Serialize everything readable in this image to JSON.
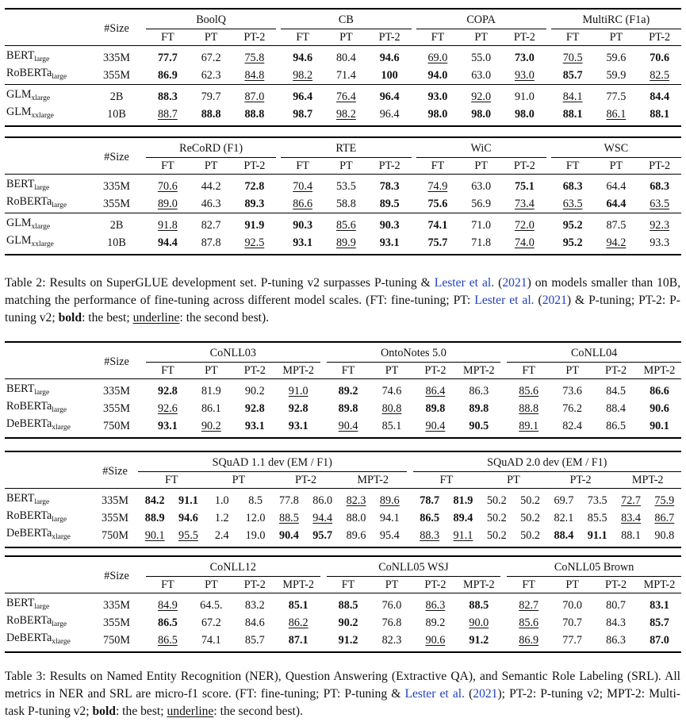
{
  "size_label": "#Size",
  "table2": {
    "top": {
      "groups": [
        "BoolQ",
        "CB",
        "COPA",
        "MultiRC (F1a)"
      ],
      "subcols": [
        "FT",
        "PT",
        "PT-2"
      ],
      "rows": [
        {
          "model": "BERT",
          "sub": "large",
          "size": "335M",
          "cells": [
            [
              "77.7",
              "b"
            ],
            [
              "67.2",
              ""
            ],
            [
              "75.8",
              "u"
            ],
            [
              "94.6",
              "b"
            ],
            [
              "80.4",
              ""
            ],
            [
              "94.6",
              "b"
            ],
            [
              "69.0",
              "u"
            ],
            [
              "55.0",
              ""
            ],
            [
              "73.0",
              "b"
            ],
            [
              "70.5",
              "u"
            ],
            [
              "59.6",
              ""
            ],
            [
              "70.6",
              "b"
            ]
          ]
        },
        {
          "model": "RoBERTa",
          "sub": "large",
          "size": "355M",
          "cells": [
            [
              "86.9",
              "b"
            ],
            [
              "62.3",
              ""
            ],
            [
              "84.8",
              "u"
            ],
            [
              "98.2",
              "u"
            ],
            [
              "71.4",
              ""
            ],
            [
              "100",
              "b"
            ],
            [
              "94.0",
              "b"
            ],
            [
              "63.0",
              ""
            ],
            [
              "93.0",
              "u"
            ],
            [
              "85.7",
              "b"
            ],
            [
              "59.9",
              ""
            ],
            [
              "82.5",
              "u"
            ]
          ]
        },
        {
          "model": "GLM",
          "sub": "xlarge",
          "size": "2B",
          "cells": [
            [
              "88.3",
              "b"
            ],
            [
              "79.7",
              ""
            ],
            [
              "87.0",
              "u"
            ],
            [
              "96.4",
              "b"
            ],
            [
              "76.4",
              "u"
            ],
            [
              "96.4",
              "b"
            ],
            [
              "93.0",
              "b"
            ],
            [
              "92.0",
              "u"
            ],
            [
              "91.0",
              ""
            ],
            [
              "84.1",
              "u"
            ],
            [
              "77.5",
              ""
            ],
            [
              "84.4",
              "b"
            ]
          ]
        },
        {
          "model": "GLM",
          "sub": "xxlarge",
          "size": "10B",
          "cells": [
            [
              "88.7",
              "u"
            ],
            [
              "88.8",
              "b"
            ],
            [
              "88.8",
              "b"
            ],
            [
              "98.7",
              "b"
            ],
            [
              "98.2",
              "u"
            ],
            [
              "96.4",
              ""
            ],
            [
              "98.0",
              "b"
            ],
            [
              "98.0",
              "b"
            ],
            [
              "98.0",
              "b"
            ],
            [
              "88.1",
              "b"
            ],
            [
              "86.1",
              "u"
            ],
            [
              "88.1",
              "b"
            ]
          ]
        }
      ]
    },
    "bottom": {
      "groups": [
        "ReCoRD (F1)",
        "RTE",
        "WiC",
        "WSC"
      ],
      "subcols": [
        "FT",
        "PT",
        "PT-2"
      ],
      "rows": [
        {
          "model": "BERT",
          "sub": "large",
          "size": "335M",
          "cells": [
            [
              "70.6",
              "u"
            ],
            [
              "44.2",
              ""
            ],
            [
              "72.8",
              "b"
            ],
            [
              "70.4",
              "u"
            ],
            [
              "53.5",
              ""
            ],
            [
              "78.3",
              "b"
            ],
            [
              "74.9",
              "u"
            ],
            [
              "63.0",
              ""
            ],
            [
              "75.1",
              "b"
            ],
            [
              "68.3",
              "b"
            ],
            [
              "64.4",
              ""
            ],
            [
              "68.3",
              "b"
            ]
          ]
        },
        {
          "model": "RoBERTa",
          "sub": "large",
          "size": "355M",
          "cells": [
            [
              "89.0",
              "u"
            ],
            [
              "46.3",
              ""
            ],
            [
              "89.3",
              "b"
            ],
            [
              "86.6",
              "u"
            ],
            [
              "58.8",
              ""
            ],
            [
              "89.5",
              "b"
            ],
            [
              "75.6",
              "b"
            ],
            [
              "56.9",
              ""
            ],
            [
              "73.4",
              "u"
            ],
            [
              "63.5",
              "u"
            ],
            [
              "64.4",
              "b"
            ],
            [
              "63.5",
              "u"
            ]
          ]
        },
        {
          "model": "GLM",
          "sub": "xlarge",
          "size": "2B",
          "cells": [
            [
              "91.8",
              "u"
            ],
            [
              "82.7",
              ""
            ],
            [
              "91.9",
              "b"
            ],
            [
              "90.3",
              "b"
            ],
            [
              "85.6",
              "u"
            ],
            [
              "90.3",
              "b"
            ],
            [
              "74.1",
              "b"
            ],
            [
              "71.0",
              ""
            ],
            [
              "72.0",
              "u"
            ],
            [
              "95.2",
              "b"
            ],
            [
              "87.5",
              ""
            ],
            [
              "92.3",
              "u"
            ]
          ]
        },
        {
          "model": "GLM",
          "sub": "xxlarge",
          "size": "10B",
          "cells": [
            [
              "94.4",
              "b"
            ],
            [
              "87.8",
              ""
            ],
            [
              "92.5",
              "u"
            ],
            [
              "93.1",
              "b"
            ],
            [
              "89.9",
              "u"
            ],
            [
              "93.1",
              "b"
            ],
            [
              "75.7",
              "b"
            ],
            [
              "71.8",
              ""
            ],
            [
              "74.0",
              "u"
            ],
            [
              "95.2",
              "b"
            ],
            [
              "94.2",
              "u"
            ],
            [
              "93.3",
              ""
            ]
          ]
        }
      ]
    },
    "caption": {
      "label": "Table 2: Results on SuperGLUE development set. P-tuning v2 surpasses P-tuning & ",
      "cite1": "Lester et al.",
      "y1a": " (",
      "year1": "2021",
      "mid": ") on models smaller than 10B, matching the performance of fine-tuning across different model scales. (FT: fine-tuning; PT: ",
      "cite2": "Lester et al.",
      "y2a": " (",
      "year2": "2021",
      "tail1": ") & P-tuning; PT-2: P-tuning v2; ",
      "bold": "bold",
      "tail2": ": the best; ",
      "underline": "underline",
      "tail3": ": the second best)."
    }
  },
  "table3": {
    "ner": {
      "groups": [
        "CoNLL03",
        "OntoNotes 5.0",
        "CoNLL04"
      ],
      "subcols": [
        "FT",
        "PT",
        "PT-2",
        "MPT-2"
      ],
      "rows": [
        {
          "model": "BERT",
          "sub": "large",
          "size": "335M",
          "cells": [
            [
              "92.8",
              "b"
            ],
            [
              "81.9",
              ""
            ],
            [
              "90.2",
              ""
            ],
            [
              "91.0",
              "u"
            ],
            [
              "89.2",
              "b"
            ],
            [
              "74.6",
              ""
            ],
            [
              "86.4",
              "u"
            ],
            [
              "86.3",
              ""
            ],
            [
              "85.6",
              "u"
            ],
            [
              "73.6",
              ""
            ],
            [
              "84.5",
              ""
            ],
            [
              "86.6",
              "b"
            ]
          ]
        },
        {
          "model": "RoBERTa",
          "sub": "large",
          "size": "355M",
          "cells": [
            [
              "92.6",
              "u"
            ],
            [
              "86.1",
              ""
            ],
            [
              "92.8",
              "b"
            ],
            [
              "92.8",
              "b"
            ],
            [
              "89.8",
              "b"
            ],
            [
              "80.8",
              "u"
            ],
            [
              "89.8",
              "b"
            ],
            [
              "89.8",
              "b"
            ],
            [
              "88.8",
              "u"
            ],
            [
              "76.2",
              ""
            ],
            [
              "88.4",
              ""
            ],
            [
              "90.6",
              "b"
            ]
          ]
        },
        {
          "model": "DeBERTa",
          "sub": "xlarge",
          "size": "750M",
          "cells": [
            [
              "93.1",
              "b"
            ],
            [
              "90.2",
              "u"
            ],
            [
              "93.1",
              "b"
            ],
            [
              "93.1",
              "b"
            ],
            [
              "90.4",
              "u"
            ],
            [
              "85.1",
              ""
            ],
            [
              "90.4",
              "u"
            ],
            [
              "90.5",
              "b"
            ],
            [
              "89.1",
              "u"
            ],
            [
              "82.4",
              ""
            ],
            [
              "86.5",
              ""
            ],
            [
              "90.1",
              "b"
            ]
          ]
        }
      ]
    },
    "qa": {
      "groups": [
        "SQuAD 1.1 dev (EM / F1)",
        "SQuAD 2.0 dev (EM / F1)"
      ],
      "subcols": [
        "FT",
        "PT",
        "PT-2",
        "MPT-2"
      ],
      "rows": [
        {
          "model": "BERT",
          "sub": "large",
          "size": "335M",
          "cells": [
            [
              "84.2",
              "b"
            ],
            [
              "91.1",
              "b"
            ],
            [
              "1.0",
              ""
            ],
            [
              "8.5",
              ""
            ],
            [
              "77.8",
              ""
            ],
            [
              "86.0",
              ""
            ],
            [
              "82.3",
              "u"
            ],
            [
              "89.6",
              "u"
            ],
            [
              "78.7",
              "b"
            ],
            [
              "81.9",
              "b"
            ],
            [
              "50.2",
              ""
            ],
            [
              "50.2",
              ""
            ],
            [
              "69.7",
              ""
            ],
            [
              "73.5",
              ""
            ],
            [
              "72.7",
              "u"
            ],
            [
              "75.9",
              "u"
            ]
          ]
        },
        {
          "model": "RoBERTa",
          "sub": "large",
          "size": "355M",
          "cells": [
            [
              "88.9",
              "b"
            ],
            [
              "94.6",
              "b"
            ],
            [
              "1.2",
              ""
            ],
            [
              "12.0",
              ""
            ],
            [
              "88.5",
              "u"
            ],
            [
              "94.4",
              "u"
            ],
            [
              "88.0",
              ""
            ],
            [
              "94.1",
              ""
            ],
            [
              "86.5",
              "b"
            ],
            [
              "89.4",
              "b"
            ],
            [
              "50.2",
              ""
            ],
            [
              "50.2",
              ""
            ],
            [
              "82.1",
              ""
            ],
            [
              "85.5",
              ""
            ],
            [
              "83.4",
              "u"
            ],
            [
              "86.7",
              "u"
            ]
          ]
        },
        {
          "model": "DeBERTa",
          "sub": "xlarge",
          "size": "750M",
          "cells": [
            [
              "90.1",
              "u"
            ],
            [
              "95.5",
              "u"
            ],
            [
              "2.4",
              ""
            ],
            [
              "19.0",
              ""
            ],
            [
              "90.4",
              "b"
            ],
            [
              "95.7",
              "b"
            ],
            [
              "89.6",
              ""
            ],
            [
              "95.4",
              ""
            ],
            [
              "88.3",
              "u"
            ],
            [
              "91.1",
              "u"
            ],
            [
              "50.2",
              ""
            ],
            [
              "50.2",
              ""
            ],
            [
              "88.4",
              "b"
            ],
            [
              "91.1",
              "b"
            ],
            [
              "88.1",
              ""
            ],
            [
              "90.8",
              ""
            ]
          ]
        }
      ]
    },
    "srl": {
      "groups": [
        "CoNLL12",
        "CoNLL05 WSJ",
        "CoNLL05 Brown"
      ],
      "subcols": [
        "FT",
        "PT",
        "PT-2",
        "MPT-2"
      ],
      "rows": [
        {
          "model": "BERT",
          "sub": "large",
          "size": "335M",
          "cells": [
            [
              "84.9",
              "u"
            ],
            [
              "64.5.",
              ""
            ],
            [
              "83.2",
              ""
            ],
            [
              "85.1",
              "b"
            ],
            [
              "88.5",
              "b"
            ],
            [
              "76.0",
              ""
            ],
            [
              "86.3",
              "u"
            ],
            [
              "88.5",
              "b"
            ],
            [
              "82.7",
              "u"
            ],
            [
              "70.0",
              ""
            ],
            [
              "80.7",
              ""
            ],
            [
              "83.1",
              "b"
            ]
          ]
        },
        {
          "model": "RoBERTa",
          "sub": "large",
          "size": "355M",
          "cells": [
            [
              "86.5",
              "b"
            ],
            [
              "67.2",
              ""
            ],
            [
              "84.6",
              ""
            ],
            [
              "86.2",
              "u"
            ],
            [
              "90.2",
              "b"
            ],
            [
              "76.8",
              ""
            ],
            [
              "89.2",
              ""
            ],
            [
              "90.0",
              "u"
            ],
            [
              "85.6",
              "u"
            ],
            [
              "70.7",
              ""
            ],
            [
              "84.3",
              ""
            ],
            [
              "85.7",
              "b"
            ]
          ]
        },
        {
          "model": "DeBERTa",
          "sub": "xlarge",
          "size": "750M",
          "cells": [
            [
              "86.5",
              "u"
            ],
            [
              "74.1",
              ""
            ],
            [
              "85.7",
              ""
            ],
            [
              "87.1",
              "b"
            ],
            [
              "91.2",
              "b"
            ],
            [
              "82.3",
              ""
            ],
            [
              "90.6",
              "u"
            ],
            [
              "91.2",
              "b"
            ],
            [
              "86.9",
              "u"
            ],
            [
              "77.7",
              ""
            ],
            [
              "86.3",
              ""
            ],
            [
              "87.0",
              "b"
            ]
          ]
        }
      ]
    },
    "caption": {
      "p1": "Table 3: Results on Named Entity Recognition (NER), Question Answering (Extractive QA), and Semantic Role Labeling (SRL). All metrics in NER and SRL are micro-f1 score. (FT: fine-tuning; PT: P-tuning & ",
      "cite": "Lester et al.",
      "y1": " (",
      "year": "2021",
      "p2": "); PT-2: P-tuning v2; MPT-2: Multi-task P-tuning v2; ",
      "bold": "bold",
      "p3": ": the best; ",
      "underline": "underline",
      "p4": ": the second best)."
    }
  }
}
